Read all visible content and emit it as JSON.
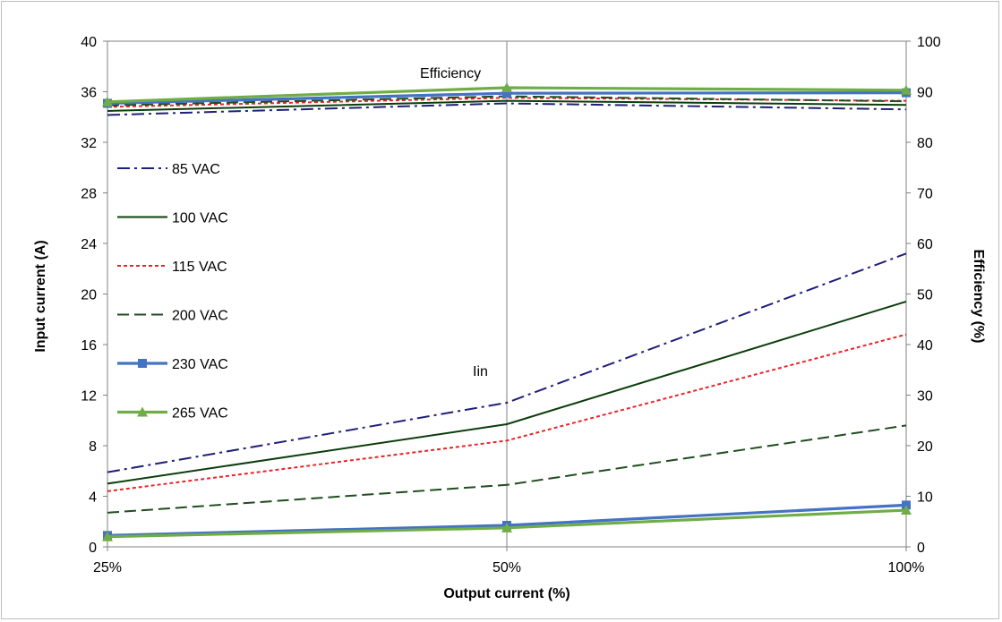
{
  "chart_data": {
    "type": "line",
    "x": [
      "25%",
      "50%",
      "100%"
    ],
    "xlabel": "Output current (%)",
    "ylabel": "Input current (A)",
    "y2label": "Efficiency (%)",
    "ylim": [
      0,
      40
    ],
    "y2lim": [
      0,
      100
    ],
    "yticks": [
      0,
      4,
      8,
      12,
      16,
      20,
      24,
      28,
      32,
      36,
      40
    ],
    "y2ticks": [
      0,
      10,
      20,
      30,
      40,
      50,
      60,
      70,
      80,
      90,
      100
    ],
    "grid": "vertical line at 50%",
    "legend_position": "left",
    "annotations": {
      "efficiency": "Efficiency",
      "iin": "Iin"
    },
    "series": [
      {
        "name": "85 VAC",
        "color": "#1f1f7a",
        "dash": "dashdot",
        "marker": "none",
        "input_current": [
          5.9,
          11.4,
          23.2
        ],
        "efficiency": [
          85.4,
          87.7,
          86.5
        ]
      },
      {
        "name": "100 VAC",
        "color": "#0b3d0b",
        "dash": "solid",
        "marker": "none",
        "input_current": [
          5.0,
          9.7,
          19.4
        ],
        "efficiency": [
          86.2,
          88.2,
          87.4
        ]
      },
      {
        "name": "115 VAC",
        "color": "#e8242a",
        "dash": "short-dash",
        "marker": "none",
        "input_current": [
          4.4,
          8.4,
          16.8
        ],
        "efficiency": [
          87.0,
          88.8,
          88.2
        ]
      },
      {
        "name": "200 VAC",
        "color": "#1f4d1f",
        "dash": "long-dash",
        "marker": "none",
        "input_current": [
          2.7,
          4.9,
          9.6
        ],
        "efficiency": [
          87.3,
          89.1,
          88.1
        ]
      },
      {
        "name": "230 VAC",
        "color": "#4472c4",
        "dash": "solid",
        "marker": "square",
        "input_current": [
          0.9,
          1.7,
          3.3
        ],
        "efficiency": [
          87.7,
          89.7,
          89.8
        ]
      },
      {
        "name": "265 VAC",
        "color": "#70ad47",
        "dash": "solid",
        "marker": "triangle",
        "input_current": [
          0.8,
          1.5,
          2.9
        ],
        "efficiency": [
          88.0,
          90.8,
          90.3
        ]
      }
    ]
  }
}
